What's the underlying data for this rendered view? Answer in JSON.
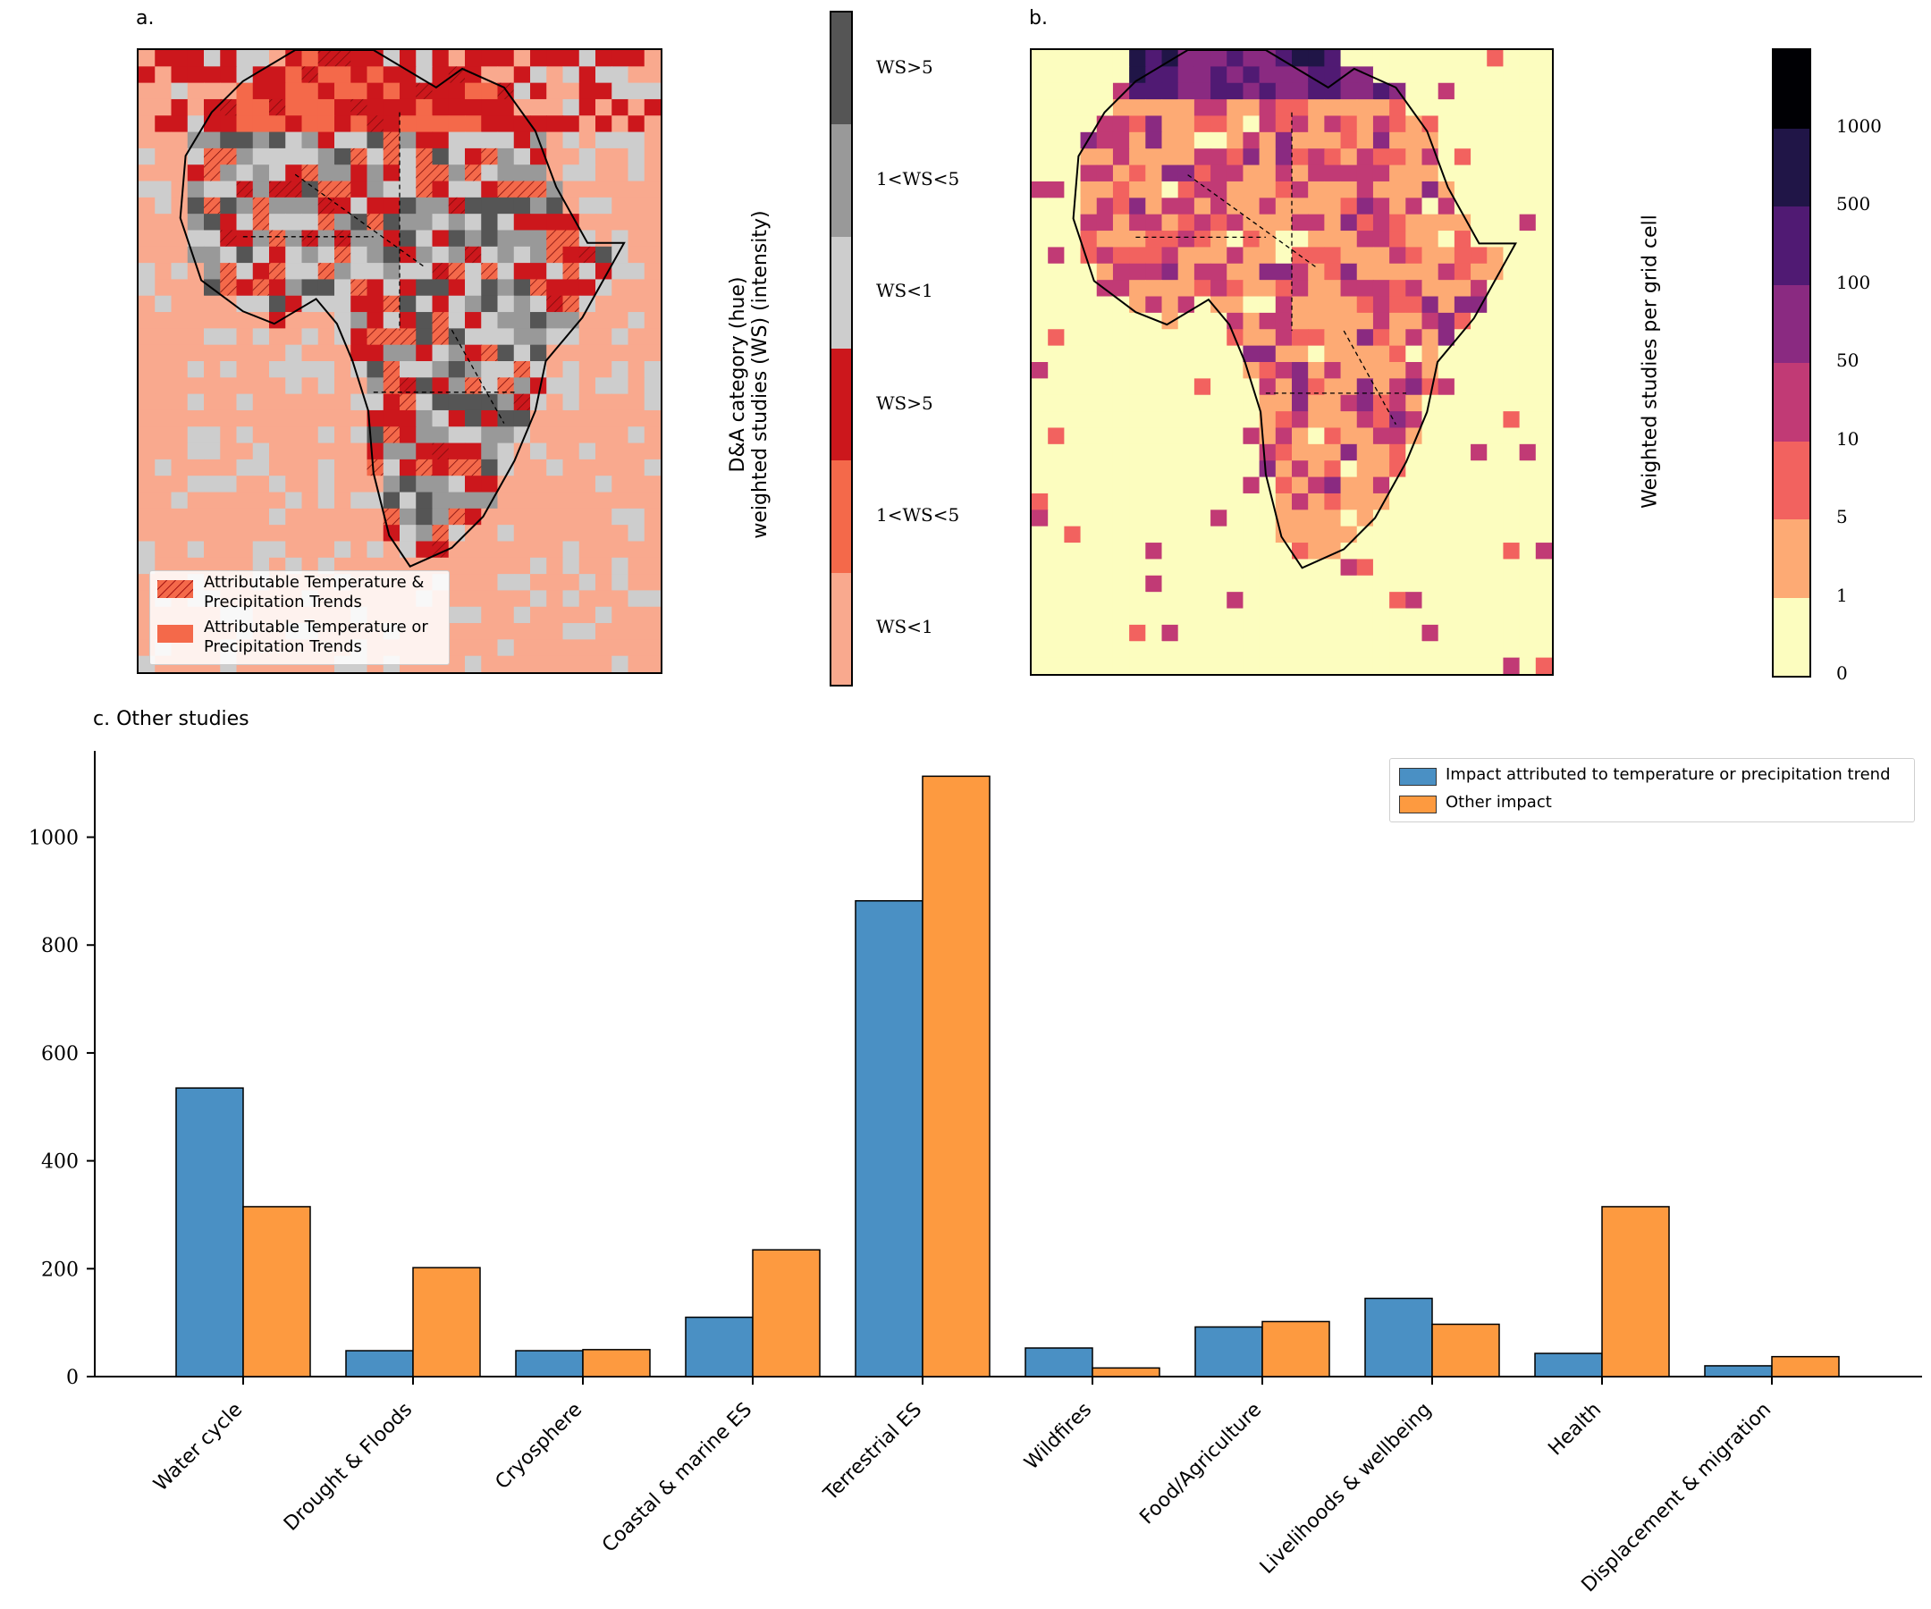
{
  "panel_a": {
    "label": "a.",
    "legend": [
      {
        "text_1": "Attributable Temperature &",
        "text_2": "Precipitation Trends",
        "color": "#f4694a",
        "hatched": true
      },
      {
        "text_1": "Attributable Temperature or",
        "text_2": "Precipitation Trends",
        "color": "#f4694a",
        "hatched": false
      }
    ],
    "colorbar": {
      "title_1": "D&A category (hue)",
      "title_2": "weighted studies (WS) (intensity)",
      "segments": [
        {
          "label": "WS<1",
          "color": "#f9a98e"
        },
        {
          "label": "1<WS<5",
          "color": "#f4694a"
        },
        {
          "label": "WS>5",
          "color": "#cc171c"
        },
        {
          "label": "WS<1",
          "color": "#cdcdcd"
        },
        {
          "label": "1<WS<5",
          "color": "#999999"
        },
        {
          "label": "WS>5",
          "color": "#555555"
        }
      ]
    }
  },
  "panel_b": {
    "label": "b.",
    "colorbar": {
      "title": "Weighted studies per grid cell",
      "ticks": [
        "0",
        "1",
        "5",
        "10",
        "50",
        "100",
        "500",
        "1000"
      ],
      "colors": [
        "#fcfdbf",
        "#fdaa74",
        "#f2625f",
        "#c13a75",
        "#8a2a81",
        "#501a73",
        "#201547",
        "#000004"
      ]
    }
  },
  "chart_data": {
    "type": "bar",
    "title": "c.  Other studies",
    "categories": [
      "Water cycle",
      "Drought & Floods",
      "Cryosphere",
      "Coastal & marine ES",
      "Terrestrial ES",
      "Wildfires",
      "Food/Agriculture",
      "Livelihoods & wellbeing",
      "Health",
      "Displacement & migration"
    ],
    "series": [
      {
        "name": "Impact attributed to temperature or precipitation trend",
        "color": "#4a90c4",
        "values": [
          535,
          48,
          48,
          110,
          882,
          53,
          92,
          145,
          43,
          20
        ]
      },
      {
        "name": "Other impact",
        "color": "#fd9a40",
        "values": [
          315,
          202,
          50,
          235,
          1113,
          16,
          102,
          97,
          315,
          37
        ]
      }
    ],
    "yticks": [
      0,
      200,
      400,
      600,
      800,
      1000
    ],
    "ylim": [
      0,
      1160
    ],
    "xlabel": "",
    "ylabel": "",
    "legend_position": "top-right"
  }
}
